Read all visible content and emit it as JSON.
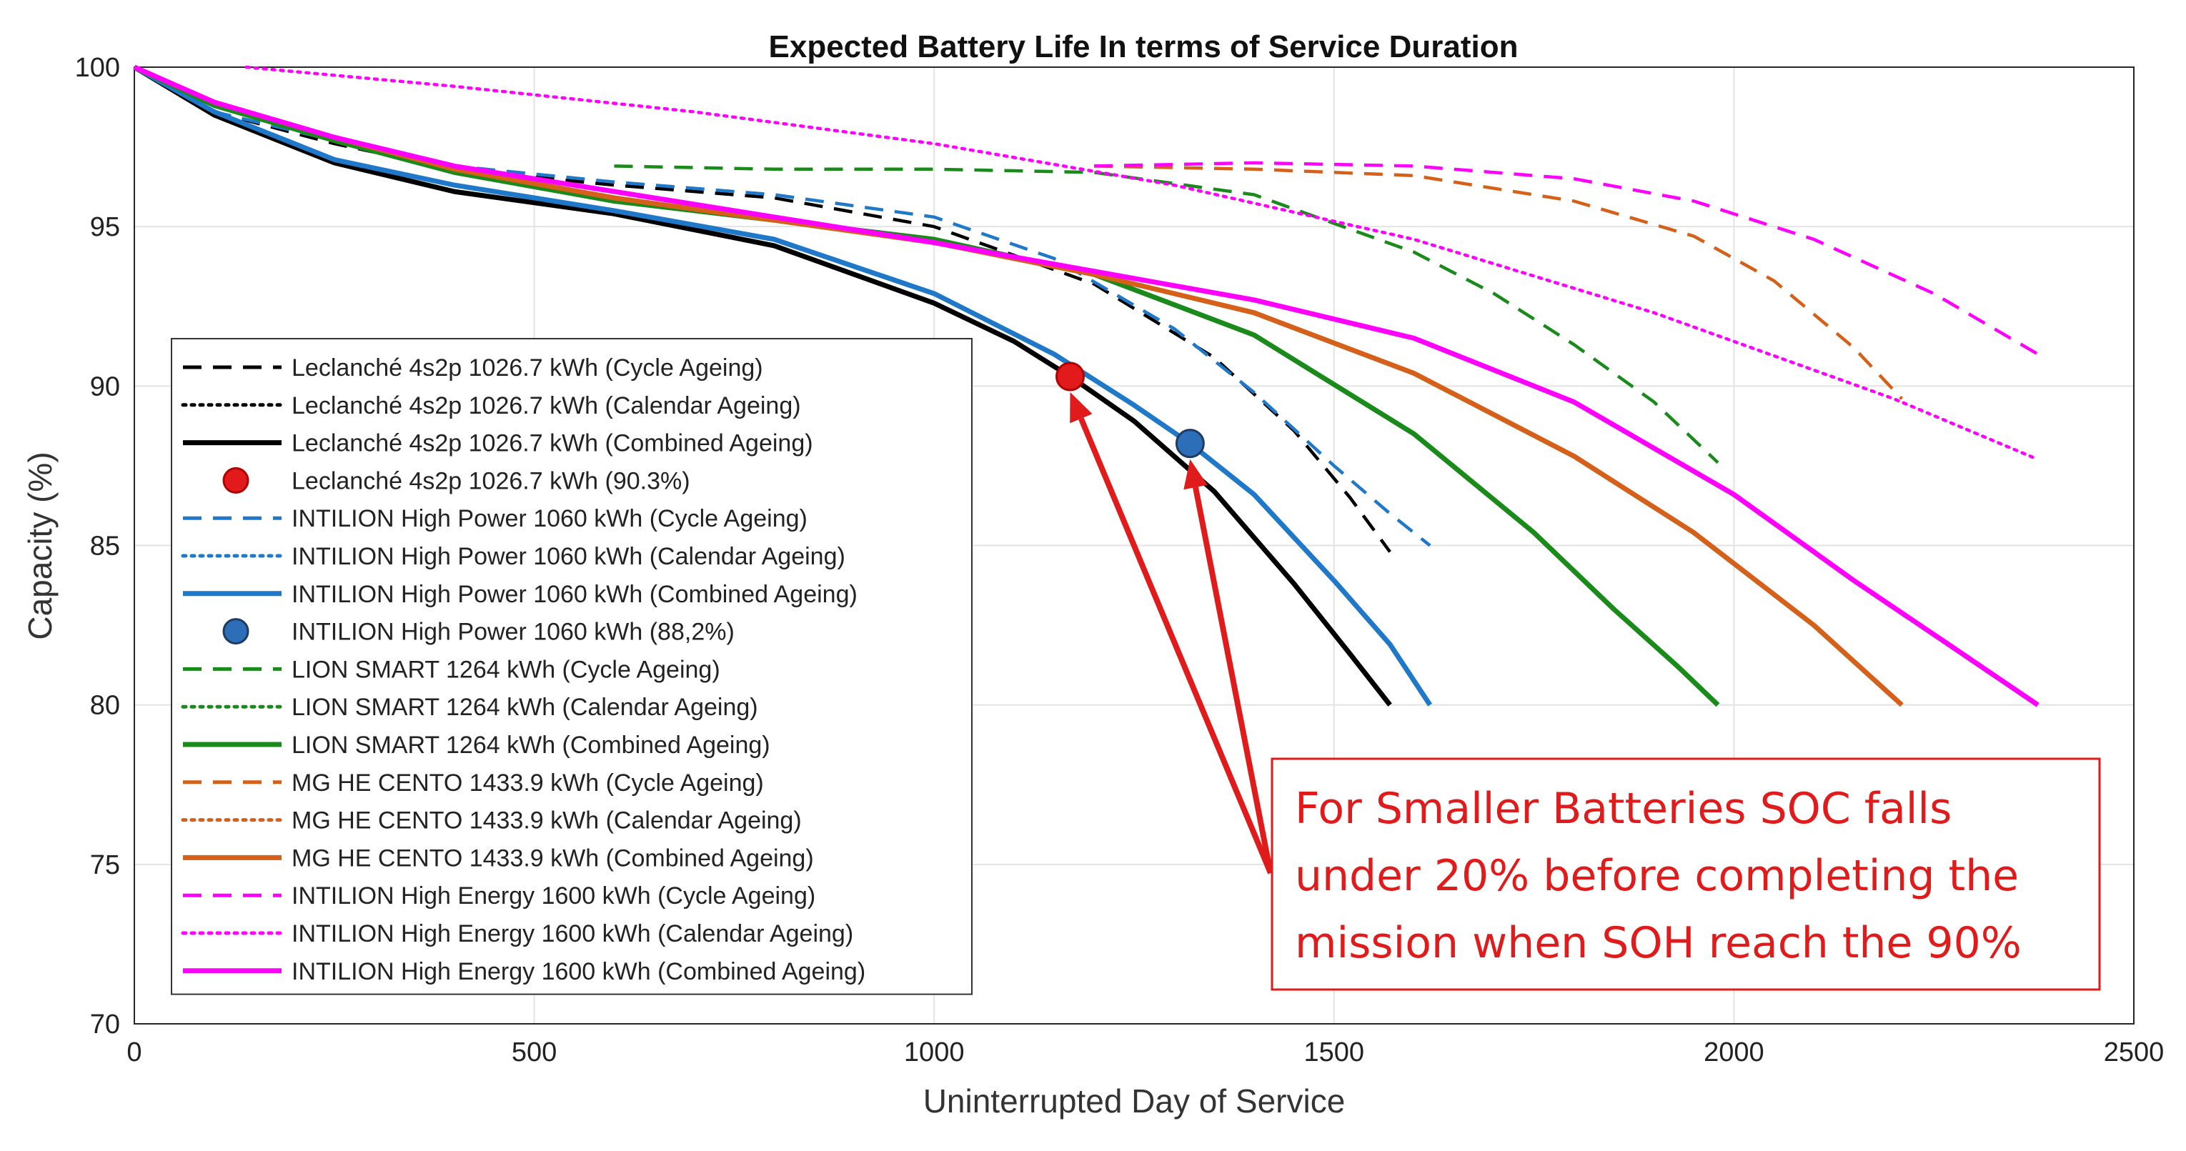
{
  "chart_data": {
    "type": "line",
    "title": "Expected Battery Life In terms of Service Duration",
    "xlabel": "Uninterrupted Day of Service",
    "ylabel": "Capacity (%)",
    "xlim": [
      0,
      2500
    ],
    "ylim": [
      70,
      100
    ],
    "xticks": [
      0,
      500,
      1000,
      1500,
      2000,
      2500
    ],
    "yticks": [
      70,
      75,
      80,
      85,
      90,
      95,
      100
    ],
    "grid": true,
    "legend_position": "left, inside plot",
    "series": [
      {
        "name": "Leclanché 4s2p 1026.7 kWh (Cycle Ageing)",
        "color": "#000000",
        "style": "dashed",
        "x": [
          0,
          100,
          250,
          400,
          600,
          800,
          1000,
          1200,
          1350,
          1450,
          1520,
          1570
        ],
        "y": [
          100,
          98.6,
          97.6,
          96.8,
          96.3,
          95.9,
          95.0,
          93.2,
          90.9,
          88.6,
          86.5,
          84.8
        ]
      },
      {
        "name": "Leclanché 4s2p 1026.7 kWh (Calendar Ageing)",
        "color": "#000000",
        "style": "dotted",
        "x": [],
        "y": []
      },
      {
        "name": "Leclanché 4s2p 1026.7 kWh (Combined Ageing)",
        "color": "#000000",
        "style": "solid",
        "x": [
          0,
          100,
          250,
          400,
          600,
          800,
          1000,
          1100,
          1170,
          1250,
          1350,
          1450,
          1520,
          1570
        ],
        "y": [
          100,
          98.5,
          97.0,
          96.1,
          95.4,
          94.4,
          92.6,
          91.4,
          90.3,
          88.9,
          86.7,
          83.8,
          81.6,
          80.0
        ]
      },
      {
        "name": "Leclanché 4s2p 1026.7 kWh (90.3%)",
        "color": "#e31a1c",
        "style": "marker",
        "x": [
          1170
        ],
        "y": [
          90.3
        ]
      },
      {
        "name": "INTILION High Power 1060 kWh (Cycle Ageing)",
        "color": "#1f78c8",
        "style": "dashed",
        "x": [
          0,
          100,
          250,
          400,
          600,
          800,
          1000,
          1150,
          1300,
          1400,
          1500,
          1570,
          1620
        ],
        "y": [
          100,
          98.6,
          97.7,
          96.9,
          96.4,
          96.0,
          95.3,
          94.0,
          91.8,
          89.8,
          87.5,
          86.0,
          85.0
        ]
      },
      {
        "name": "INTILION High Power 1060 kWh (Calendar Ageing)",
        "color": "#1f78c8",
        "style": "dotted",
        "x": [],
        "y": []
      },
      {
        "name": "INTILION High Power 1060 kWh (Combined Ageing)",
        "color": "#1f78c8",
        "style": "solid",
        "x": [
          0,
          100,
          250,
          400,
          600,
          800,
          1000,
          1150,
          1250,
          1320,
          1400,
          1500,
          1570,
          1620
        ],
        "y": [
          100,
          98.6,
          97.1,
          96.3,
          95.5,
          94.6,
          92.9,
          91.0,
          89.4,
          88.2,
          86.6,
          83.9,
          81.9,
          80.0
        ]
      },
      {
        "name": "INTILION High Power 1060 kWh (88,2%)",
        "color": "#2c6fb8",
        "style": "marker",
        "x": [
          1320
        ],
        "y": [
          88.2
        ]
      },
      {
        "name": "LION SMART 1264 kWh (Cycle Ageing)",
        "color": "#1a8a1a",
        "style": "dashed",
        "x": [
          600,
          800,
          1000,
          1200,
          1400,
          1600,
          1700,
          1800,
          1900,
          1980
        ],
        "y": [
          96.9,
          96.8,
          96.8,
          96.7,
          96.0,
          94.2,
          92.9,
          91.3,
          89.5,
          87.6
        ]
      },
      {
        "name": "LION SMART 1264 kWh (Calendar Ageing)",
        "color": "#1a8a1a",
        "style": "dotted",
        "x": [],
        "y": []
      },
      {
        "name": "LION SMART 1264 kWh (Combined Ageing)",
        "color": "#1a8a1a",
        "style": "solid",
        "x": [
          0,
          100,
          250,
          400,
          600,
          800,
          1000,
          1200,
          1400,
          1600,
          1750,
          1850,
          1930,
          1980
        ],
        "y": [
          100,
          98.8,
          97.7,
          96.7,
          95.8,
          95.2,
          94.6,
          93.5,
          91.6,
          88.5,
          85.4,
          83.0,
          81.2,
          80.0
        ]
      },
      {
        "name": "MG HE CENTO 1433.9 kWh (Cycle Ageing)",
        "color": "#d4601a",
        "style": "dashed",
        "x": [
          1200,
          1400,
          1600,
          1800,
          1950,
          2050,
          2150,
          2210
        ],
        "y": [
          96.9,
          96.8,
          96.6,
          95.8,
          94.7,
          93.3,
          91.2,
          89.6
        ]
      },
      {
        "name": "MG HE CENTO 1433.9 kWh (Calendar Ageing)",
        "color": "#d4601a",
        "style": "dotted",
        "x": [],
        "y": []
      },
      {
        "name": "MG HE CENTO 1433.9 kWh (Combined Ageing)",
        "color": "#d4601a",
        "style": "solid",
        "x": [
          0,
          100,
          250,
          400,
          600,
          800,
          1000,
          1200,
          1400,
          1600,
          1800,
          1950,
          2100,
          2210
        ],
        "y": [
          100,
          98.9,
          97.8,
          96.8,
          95.9,
          95.2,
          94.5,
          93.5,
          92.3,
          90.4,
          87.8,
          85.4,
          82.5,
          80.0
        ]
      },
      {
        "name": "INTILION High Energy 1600 kWh (Cycle Ageing)",
        "color": "#ff00ff",
        "style": "dashed",
        "x": [
          1200,
          1400,
          1600,
          1800,
          1950,
          2100,
          2250,
          2380
        ],
        "y": [
          96.9,
          97.0,
          96.9,
          96.5,
          95.8,
          94.6,
          92.9,
          91.0
        ]
      },
      {
        "name": "INTILION High Energy 1600 kWh (Calendar Ageing)",
        "color": "#ff00ff",
        "style": "dotted",
        "x": [
          140,
          400,
          700,
          1000,
          1300,
          1600,
          1900,
          2200,
          2380
        ],
        "y": [
          100,
          99.4,
          98.6,
          97.6,
          96.3,
          94.6,
          92.3,
          89.6,
          87.7
        ]
      },
      {
        "name": "INTILION High Energy 1600 kWh (Combined Ageing)",
        "color": "#ff00ff",
        "style": "solid",
        "x": [
          0,
          100,
          250,
          400,
          600,
          800,
          1000,
          1200,
          1400,
          1600,
          1800,
          2000,
          2150,
          2280,
          2380
        ],
        "y": [
          100,
          98.9,
          97.8,
          96.9,
          96.1,
          95.3,
          94.5,
          93.6,
          92.7,
          91.5,
          89.5,
          86.6,
          83.9,
          81.7,
          80.0
        ]
      }
    ],
    "annotation": {
      "lines": [
        "For Smaller Batteries SOC falls",
        "under 20% before completing the",
        "mission when SOH reach the 90%"
      ],
      "color": "#e01b1b",
      "arrow_targets": [
        {
          "x": 1170,
          "y": 90.3
        },
        {
          "x": 1320,
          "y": 88.2
        }
      ]
    }
  }
}
